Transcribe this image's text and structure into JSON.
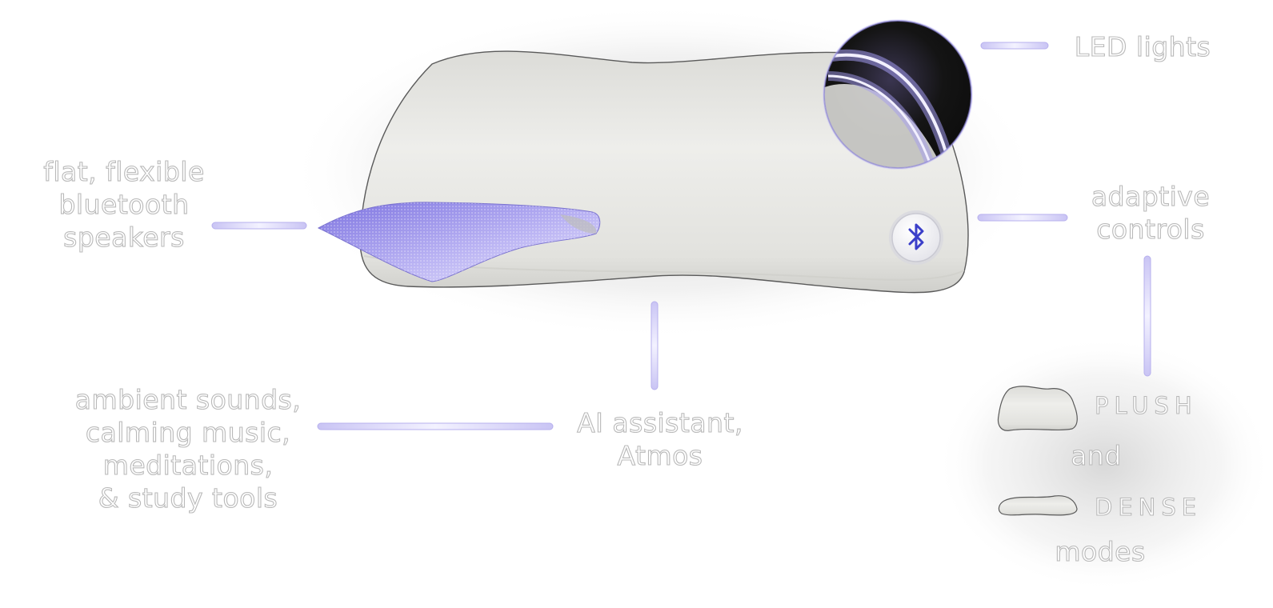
{
  "labels": {
    "led_lights": "LED lights",
    "speakers": "flat, flexible\nbluetooth\nspeakers",
    "adaptive_controls": "adaptive\ncontrols",
    "ambient": "ambient sounds,\ncalming music,\nmeditations,\n& study tools",
    "ai_assistant": "AI assistant,\nAtmos",
    "plush": "PLUSH",
    "and": "and",
    "dense": "DENSE",
    "modes": "modes"
  },
  "colors": {
    "accent": "#8e86e0",
    "accent_light": "#c9c4f4",
    "pillow": "#e9e9e6",
    "led_bg": "#141414",
    "bluetooth": "#3b3fc9"
  },
  "icons": {
    "bluetooth": "bluetooth-icon"
  }
}
